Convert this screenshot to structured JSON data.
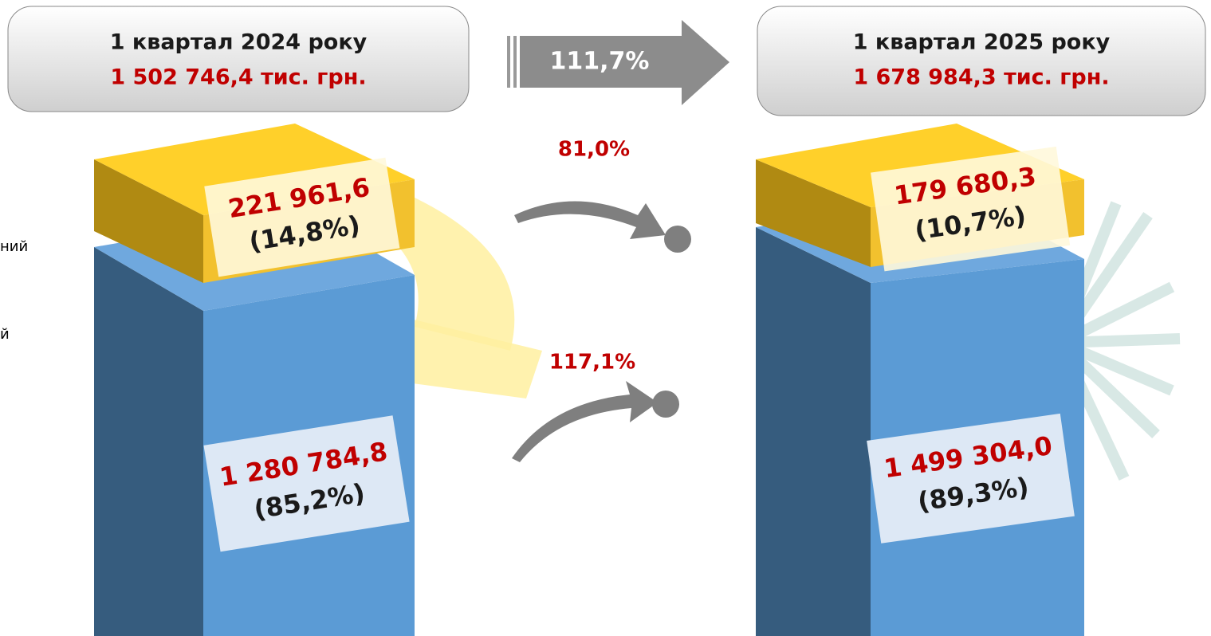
{
  "left_panel": {
    "period": "1 квартал 2024 року",
    "total": "1 502 746,4 тис. грн.",
    "top_value": "221 961,6",
    "top_share": "(14,8%)",
    "bottom_value": "1 280 784,8",
    "bottom_share": "(85,2%)"
  },
  "growth_total": "111,7%",
  "growth_top": "81,0%",
  "growth_bottom": "117,1%",
  "right_panel": {
    "period": "1 квартал 2025 року",
    "total": "1 678 984,3 тис. грн.",
    "top_value": "179 680,3",
    "top_share": "(10,7%)",
    "bottom_value": "1 499 304,0",
    "bottom_share": "(89,3%)"
  },
  "legend_fragments": [
    "ний",
    "й"
  ]
}
